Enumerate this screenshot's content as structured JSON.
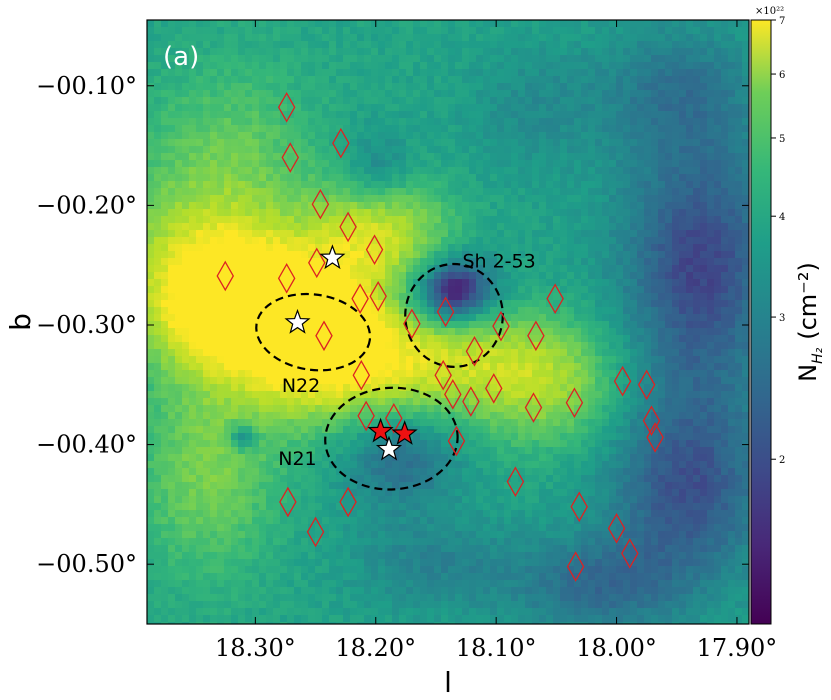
{
  "chart_data": {
    "type": "heatmap",
    "panel_label": "(a)",
    "xlabel": "l",
    "ylabel": "b",
    "xlim": [
      18.39,
      17.89
    ],
    "ylim": [
      -0.55,
      -0.045
    ],
    "x_ticks": [
      {
        "value": 18.3,
        "label": "18.30°"
      },
      {
        "value": 18.2,
        "label": "18.20°"
      },
      {
        "value": 18.1,
        "label": "18.10°"
      },
      {
        "value": 18.0,
        "label": "18.00°"
      },
      {
        "value": 17.9,
        "label": "17.90°"
      }
    ],
    "y_ticks": [
      {
        "value": -0.1,
        "label": "−00.10°"
      },
      {
        "value": -0.2,
        "label": "−00.20°"
      },
      {
        "value": -0.3,
        "label": "−00.30°"
      },
      {
        "value": -0.4,
        "label": "−00.40°"
      },
      {
        "value": -0.5,
        "label": "−00.50°"
      }
    ],
    "colorbar": {
      "label": "N_H2 (cm⁻²)",
      "label_main": "N",
      "label_sub": "H₂",
      "label_unit": "(cm⁻²)",
      "scale": "log",
      "min": 1.25,
      "max": 7,
      "multiplier": "×10²²",
      "colormap": "viridis",
      "ticks": [
        {
          "value": 2,
          "label": "2"
        },
        {
          "value": 3,
          "label": "3"
        },
        {
          "value": 4,
          "label": "4"
        },
        {
          "value": 5,
          "label": "5"
        },
        {
          "value": 6,
          "label": "6"
        },
        {
          "value": 7,
          "label": "7"
        }
      ]
    },
    "colors": {
      "ellipse": "#000000",
      "diamond": "#dd2222",
      "star_white": "#ffffff",
      "star_red": "#ee1111"
    },
    "regions": [
      {
        "name": "N22",
        "l": 18.252,
        "b": -0.306,
        "width": 0.095,
        "height": 0.063,
        "angle": 8
      },
      {
        "name": "Sh 2-53",
        "l": 18.135,
        "b": -0.292,
        "width": 0.081,
        "height": 0.086,
        "angle": 0
      },
      {
        "name": "N21",
        "l": 18.187,
        "b": -0.395,
        "width": 0.11,
        "height": 0.085,
        "angle": -3
      }
    ],
    "region_labels": [
      {
        "text": "Sh 2-53",
        "l": 18.128,
        "b": -0.252
      },
      {
        "text": "N22",
        "l": 18.278,
        "b": -0.356
      },
      {
        "text": "N21",
        "l": 18.281,
        "b": -0.417
      }
    ],
    "clumps": [
      {
        "l": 18.274,
        "b": -0.118
      },
      {
        "l": 18.271,
        "b": -0.16
      },
      {
        "l": 18.229,
        "b": -0.148
      },
      {
        "l": 18.246,
        "b": -0.199
      },
      {
        "l": 18.223,
        "b": -0.218
      },
      {
        "l": 18.201,
        "b": -0.237
      },
      {
        "l": 18.249,
        "b": -0.248
      },
      {
        "l": 18.325,
        "b": -0.259
      },
      {
        "l": 18.274,
        "b": -0.261
      },
      {
        "l": 18.213,
        "b": -0.278
      },
      {
        "l": 18.198,
        "b": -0.276
      },
      {
        "l": 18.17,
        "b": -0.299
      },
      {
        "l": 18.142,
        "b": -0.289
      },
      {
        "l": 18.243,
        "b": -0.309
      },
      {
        "l": 18.096,
        "b": -0.301
      },
      {
        "l": 18.067,
        "b": -0.309
      },
      {
        "l": 18.051,
        "b": -0.278
      },
      {
        "l": 18.118,
        "b": -0.322
      },
      {
        "l": 18.212,
        "b": -0.342
      },
      {
        "l": 18.144,
        "b": -0.342
      },
      {
        "l": 18.136,
        "b": -0.358
      },
      {
        "l": 18.121,
        "b": -0.364
      },
      {
        "l": 18.102,
        "b": -0.353
      },
      {
        "l": 18.208,
        "b": -0.376
      },
      {
        "l": 18.185,
        "b": -0.378
      },
      {
        "l": 18.069,
        "b": -0.369
      },
      {
        "l": 18.035,
        "b": -0.365
      },
      {
        "l": 17.995,
        "b": -0.347
      },
      {
        "l": 17.975,
        "b": -0.35
      },
      {
        "l": 17.971,
        "b": -0.38
      },
      {
        "l": 17.968,
        "b": -0.394
      },
      {
        "l": 18.133,
        "b": -0.397
      },
      {
        "l": 18.084,
        "b": -0.431
      },
      {
        "l": 18.031,
        "b": -0.452
      },
      {
        "l": 18.273,
        "b": -0.448
      },
      {
        "l": 18.223,
        "b": -0.448
      },
      {
        "l": 18.0,
        "b": -0.47
      },
      {
        "l": 17.989,
        "b": -0.491
      },
      {
        "l": 18.25,
        "b": -0.473
      },
      {
        "l": 18.034,
        "b": -0.502
      }
    ],
    "stars": [
      {
        "l": 18.236,
        "b": -0.244,
        "color": "white"
      },
      {
        "l": 18.265,
        "b": -0.298,
        "color": "white"
      },
      {
        "l": 18.196,
        "b": -0.389,
        "color": "red"
      },
      {
        "l": 18.176,
        "b": -0.391,
        "color": "red"
      },
      {
        "l": 18.189,
        "b": -0.404,
        "color": "white"
      }
    ],
    "column_density_map": {
      "description_values_in_1e22_cm-2": true,
      "background": 3.4,
      "components": [
        {
          "l": 18.3,
          "b": -0.285,
          "amp": 5.0,
          "sl": 0.05,
          "sb": 0.035
        },
        {
          "l": 18.34,
          "b": -0.25,
          "amp": 2.5,
          "sl": 0.05,
          "sb": 0.05
        },
        {
          "l": 18.2,
          "b": -0.225,
          "amp": 2.8,
          "sl": 0.04,
          "sb": 0.03
        },
        {
          "l": 18.17,
          "b": -0.33,
          "amp": 3.0,
          "sl": 0.07,
          "sb": 0.03
        },
        {
          "l": 18.06,
          "b": -0.35,
          "amp": 1.8,
          "sl": 0.04,
          "sb": 0.035
        },
        {
          "l": 18.26,
          "b": -0.33,
          "amp": 1.8,
          "sl": 0.04,
          "sb": 0.04
        },
        {
          "l": 18.34,
          "b": -0.42,
          "amp": 1.5,
          "sl": 0.04,
          "sb": 0.06
        },
        {
          "l": 18.32,
          "b": -0.15,
          "amp": 1.0,
          "sl": 0.05,
          "sb": 0.05
        },
        {
          "l": 18.23,
          "b": -0.3,
          "amp": 2.0,
          "sl": 0.03,
          "sb": 0.03
        },
        {
          "l": 18.137,
          "b": -0.273,
          "amp": -2.6,
          "sl": 0.025,
          "sb": 0.022
        },
        {
          "l": 18.18,
          "b": -0.41,
          "amp": -1.1,
          "sl": 0.035,
          "sb": 0.03
        },
        {
          "l": 18.255,
          "b": -0.31,
          "amp": -1.5,
          "sl": 0.015,
          "sb": 0.012
        },
        {
          "l": 18.31,
          "b": -0.393,
          "amp": -1.8,
          "sl": 0.008,
          "sb": 0.008
        },
        {
          "l": 18.2,
          "b": -0.175,
          "amp": -0.9,
          "sl": 0.02,
          "sb": 0.025
        },
        {
          "l": 17.93,
          "b": -0.25,
          "amp": -1.6,
          "sl": 0.05,
          "sb": 0.08
        },
        {
          "l": 17.94,
          "b": -0.44,
          "amp": -1.4,
          "sl": 0.05,
          "sb": 0.06
        },
        {
          "l": 18.02,
          "b": -0.52,
          "amp": -1.0,
          "sl": 0.05,
          "sb": 0.03
        },
        {
          "l": 18.15,
          "b": -0.5,
          "amp": -0.7,
          "sl": 0.05,
          "sb": 0.03
        },
        {
          "l": 17.95,
          "b": -0.1,
          "amp": -0.8,
          "sl": 0.05,
          "sb": 0.04
        },
        {
          "l": 18.07,
          "b": -0.12,
          "amp": -0.5,
          "sl": 0.04,
          "sb": 0.04
        }
      ]
    }
  }
}
